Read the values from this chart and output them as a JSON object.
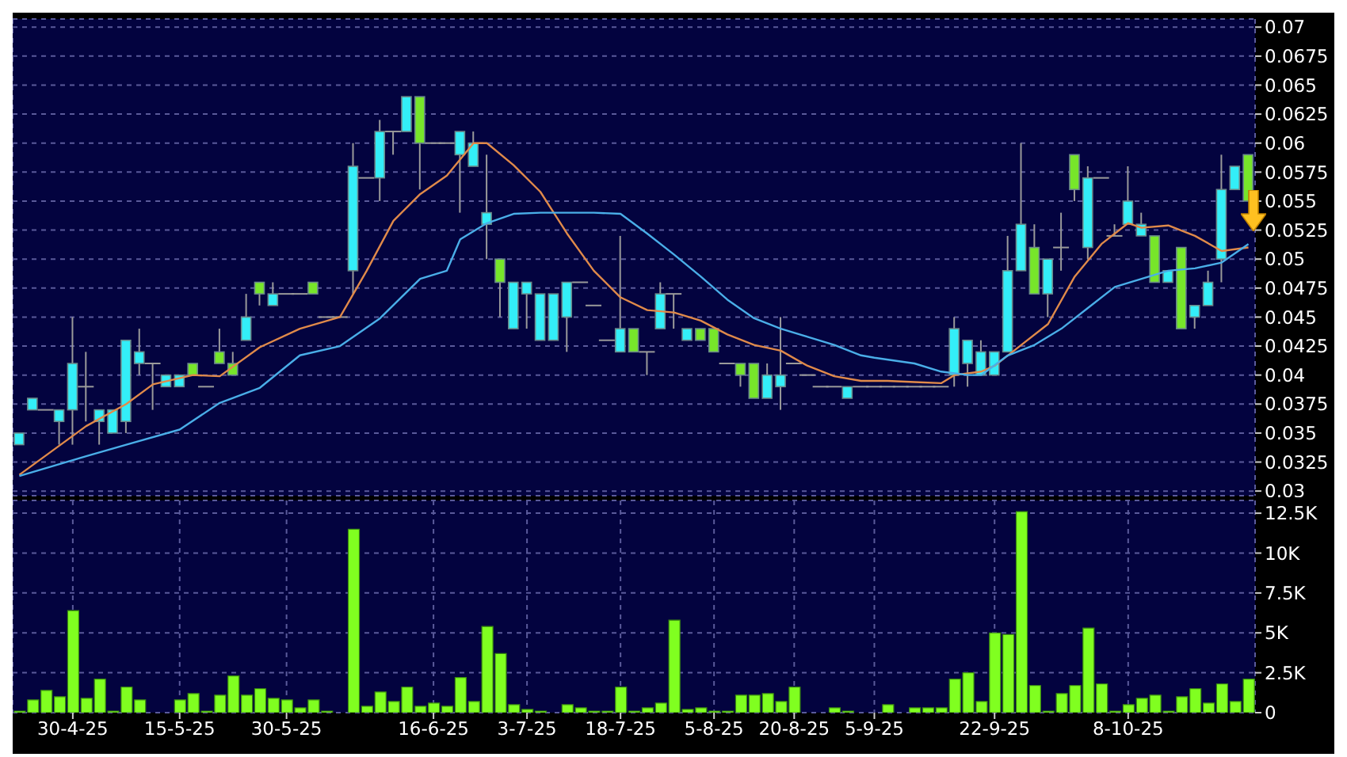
{
  "chart_data": [
    {
      "type": "candlestick",
      "categories": [
        null,
        null,
        null,
        null,
        null,
        null,
        null,
        null,
        null,
        null,
        null,
        null,
        null,
        null,
        null,
        null,
        null,
        null,
        null,
        null,
        null,
        null,
        null,
        null,
        null,
        null,
        null,
        null,
        null,
        null,
        null,
        null,
        null,
        null,
        null,
        null,
        null,
        null,
        null,
        null,
        null,
        null,
        null,
        null,
        null,
        null,
        null,
        null,
        null,
        null,
        null,
        null,
        null,
        null,
        null,
        null,
        null,
        null,
        null,
        null,
        null,
        null,
        null,
        null,
        null,
        null,
        null,
        null,
        null,
        null,
        null,
        null,
        null,
        null,
        null,
        null,
        null,
        null,
        null,
        null,
        null,
        null,
        null,
        null,
        null,
        null,
        null,
        null,
        null,
        null,
        null,
        null,
        null
      ],
      "ohlc": [
        [
          0.034,
          0.035,
          0.034,
          0.035
        ],
        [
          0.037,
          0.038,
          0.037,
          0.038
        ],
        [
          0.037,
          0.037,
          0.037,
          0.037
        ],
        [
          0.036,
          0.037,
          0.034,
          0.037
        ],
        [
          0.037,
          0.045,
          0.034,
          0.041
        ],
        [
          0.039,
          0.042,
          0.036,
          0.039
        ],
        [
          0.036,
          0.037,
          0.034,
          0.037
        ],
        [
          0.035,
          0.037,
          0.035,
          0.037
        ],
        [
          0.036,
          0.043,
          0.035,
          0.043
        ],
        [
          0.041,
          0.044,
          0.04,
          0.042
        ],
        [
          0.041,
          0.041,
          0.037,
          0.041
        ],
        [
          0.039,
          0.04,
          0.039,
          0.04
        ],
        [
          0.039,
          0.04,
          0.039,
          0.04
        ],
        [
          0.041,
          0.041,
          0.04,
          0.04
        ],
        [
          0.039,
          0.039,
          0.039,
          0.039
        ],
        [
          0.042,
          0.044,
          0.041,
          0.041
        ],
        [
          0.041,
          0.042,
          0.04,
          0.04
        ],
        [
          0.043,
          0.047,
          0.043,
          0.045
        ],
        [
          0.048,
          0.048,
          0.046,
          0.047
        ],
        [
          0.046,
          0.048,
          0.046,
          0.047
        ],
        [
          0.047,
          0.047,
          0.047,
          0.047
        ],
        [
          0.047,
          0.047,
          0.047,
          0.047
        ],
        [
          0.048,
          0.048,
          0.047,
          0.047
        ],
        [
          0.045,
          0.045,
          0.045,
          0.045
        ],
        [
          0.045,
          0.045,
          0.045,
          0.045
        ],
        [
          0.049,
          0.06,
          0.047,
          0.058
        ],
        [
          0.057,
          0.057,
          0.057,
          0.057
        ],
        [
          0.057,
          0.062,
          0.055,
          0.061
        ],
        [
          0.061,
          0.061,
          0.059,
          0.061
        ],
        [
          0.061,
          0.064,
          0.061,
          0.064
        ],
        [
          0.064,
          0.064,
          0.056,
          0.06
        ],
        [
          0.06,
          0.06,
          0.06,
          0.06
        ],
        [
          0.06,
          0.06,
          0.06,
          0.06
        ],
        [
          0.059,
          0.061,
          0.054,
          0.061
        ],
        [
          0.058,
          0.061,
          0.058,
          0.06
        ],
        [
          0.053,
          0.059,
          0.05,
          0.054
        ],
        [
          0.05,
          0.05,
          0.045,
          0.048
        ],
        [
          0.044,
          0.048,
          0.044,
          0.048
        ],
        [
          0.047,
          0.048,
          0.044,
          0.048
        ],
        [
          0.043,
          0.047,
          0.043,
          0.047
        ],
        [
          0.043,
          0.047,
          0.043,
          0.047
        ],
        [
          0.045,
          0.048,
          0.042,
          0.048
        ],
        [
          0.048,
          0.048,
          0.048,
          0.048
        ],
        [
          0.046,
          0.046,
          0.046,
          0.046
        ],
        [
          0.043,
          0.043,
          0.043,
          0.043
        ],
        [
          0.042,
          0.052,
          0.042,
          0.044
        ],
        [
          0.044,
          0.044,
          0.042,
          0.042
        ],
        [
          0.042,
          0.042,
          0.04,
          0.042
        ],
        [
          0.044,
          0.048,
          0.044,
          0.047
        ],
        [
          0.047,
          0.047,
          0.044,
          0.047
        ],
        [
          0.043,
          0.044,
          0.043,
          0.044
        ],
        [
          0.044,
          0.044,
          0.043,
          0.043
        ],
        [
          0.044,
          0.044,
          0.042,
          0.042
        ],
        [
          0.041,
          0.041,
          0.041,
          0.041
        ],
        [
          0.041,
          0.041,
          0.039,
          0.04
        ],
        [
          0.041,
          0.041,
          0.038,
          0.038
        ],
        [
          0.038,
          0.041,
          0.038,
          0.04
        ],
        [
          0.039,
          0.045,
          0.037,
          0.04
        ],
        [
          0.041,
          0.041,
          0.041,
          0.041
        ],
        [
          0.04,
          0.04,
          0.04,
          0.04
        ],
        [
          0.039,
          0.039,
          0.039,
          0.039
        ],
        [
          0.039,
          0.039,
          0.039,
          0.039
        ],
        [
          0.038,
          0.039,
          0.038,
          0.039
        ],
        [
          0.039,
          0.039,
          0.039,
          0.039
        ],
        [
          0.039,
          0.039,
          0.039,
          0.039
        ],
        [
          0.039,
          0.039,
          0.039,
          0.039
        ],
        [
          0.039,
          0.039,
          0.039,
          0.039
        ],
        [
          0.039,
          0.039,
          0.039,
          0.039
        ],
        [
          0.039,
          0.039,
          0.039,
          0.039
        ],
        [
          0.039,
          0.039,
          0.039,
          0.039
        ],
        [
          0.04,
          0.045,
          0.039,
          0.044
        ],
        [
          0.041,
          0.043,
          0.039,
          0.043
        ],
        [
          0.04,
          0.043,
          0.04,
          0.042
        ],
        [
          0.04,
          0.042,
          0.04,
          0.042
        ],
        [
          0.042,
          0.052,
          0.042,
          0.049
        ],
        [
          0.049,
          0.06,
          0.049,
          0.053
        ],
        [
          0.051,
          0.053,
          0.047,
          0.047
        ],
        [
          0.047,
          0.05,
          0.045,
          0.05
        ],
        [
          0.051,
          0.054,
          0.049,
          0.051
        ],
        [
          0.059,
          0.059,
          0.055,
          0.056
        ],
        [
          0.051,
          0.058,
          0.05,
          0.057
        ],
        [
          0.057,
          0.057,
          0.057,
          0.057
        ],
        [
          0.052,
          0.053,
          0.052,
          0.052
        ],
        [
          0.053,
          0.058,
          0.053,
          0.055
        ],
        [
          0.052,
          0.054,
          0.052,
          0.053
        ],
        [
          0.052,
          0.052,
          0.048,
          0.048
        ],
        [
          0.048,
          0.049,
          0.048,
          0.049
        ],
        [
          0.051,
          0.051,
          0.044,
          0.044
        ],
        [
          0.045,
          0.046,
          0.044,
          0.046
        ],
        [
          0.046,
          0.049,
          0.046,
          0.048
        ],
        [
          0.05,
          0.059,
          0.048,
          0.056
        ],
        [
          0.056,
          0.058,
          0.056,
          0.058
        ],
        [
          0.059,
          0.059,
          0.055,
          0.055
        ]
      ],
      "colors": [
        "#33eef8",
        "#33eef8",
        "#9a9a9a",
        "#33eef8",
        "#33eef8",
        "#9a9a9a",
        "#33eef8",
        "#33eef8",
        "#33eef8",
        "#33eef8",
        "#9a9a9a",
        "#33eef8",
        "#33eef8",
        "#77e62a",
        "#9a9a9a",
        "#77e62a",
        "#77e62a",
        "#33eef8",
        "#77e62a",
        "#33eef8",
        "#9a9a9a",
        "#9a9a9a",
        "#77e62a",
        "#9a9a9a",
        "#9a9a9a",
        "#33eef8",
        "#9a9a9a",
        "#33eef8",
        "#9a9a9a",
        "#33eef8",
        "#77e62a",
        "#9a9a9a",
        "#9a9a9a",
        "#33eef8",
        "#33eef8",
        "#33eef8",
        "#77e62a",
        "#33eef8",
        "#33eef8",
        "#33eef8",
        "#33eef8",
        "#33eef8",
        "#9a9a9a",
        "#9a9a9a",
        "#9a9a9a",
        "#33eef8",
        "#77e62a",
        "#9a9a9a",
        "#33eef8",
        "#9a9a9a",
        "#33eef8",
        "#77e62a",
        "#77e62a",
        "#9a9a9a",
        "#77e62a",
        "#77e62a",
        "#33eef8",
        "#33eef8",
        "#9a9a9a",
        "#9a9a9a",
        "#9a9a9a",
        "#9a9a9a",
        "#33eef8",
        "#9a9a9a",
        "#9a9a9a",
        "#9a9a9a",
        "#9a9a9a",
        "#9a9a9a",
        "#9a9a9a",
        "#9a9a9a",
        "#33eef8",
        "#33eef8",
        "#33eef8",
        "#33eef8",
        "#33eef8",
        "#33eef8",
        "#77e62a",
        "#33eef8",
        "#9a9a9a",
        "#77e62a",
        "#33eef8",
        "#9a9a9a",
        "#9a9a9a",
        "#33eef8",
        "#33eef8",
        "#77e62a",
        "#33eef8",
        "#77e62a",
        "#33eef8",
        "#33eef8",
        "#33eef8",
        "#33eef8",
        "#77e62a"
      ],
      "series": [
        {
          "type": "line",
          "color": "#e08a4a",
          "values": [
            0.0314,
            null,
            null,
            null,
            null,
            0.0356,
            null,
            null,
            0.0375,
            null,
            0.0392,
            null,
            null,
            0.04,
            null,
            0.0399,
            null,
            null,
            0.0424,
            null,
            null,
            0.044,
            null,
            null,
            0.045,
            null,
            0.049,
            null,
            0.0533,
            null,
            0.0556,
            null,
            0.0572,
            null,
            0.06,
            0.06,
            null,
            0.0581,
            null,
            0.0558,
            null,
            0.0522,
            null,
            0.049,
            null,
            0.0467,
            null,
            0.0456,
            null,
            0.0454,
            null,
            0.0447,
            null,
            0.0435,
            null,
            0.0426,
            null,
            0.0421,
            null,
            0.0408,
            null,
            0.0399,
            null,
            0.0395,
            null,
            0.0395,
            null,
            0.0394,
            null,
            0.0393,
            0.04,
            null,
            0.0403,
            0.0408,
            null,
            0.0426,
            null,
            0.0444,
            null,
            0.0485,
            null,
            0.0513,
            null,
            0.0531,
            0.0527,
            null,
            0.0529,
            null,
            0.052,
            null,
            0.0507,
            null,
            0.051
          ]
        },
        {
          "type": "line",
          "color": "#4aaee8",
          "values": [
            0.0313,
            null,
            null,
            null,
            null,
            0.033,
            null,
            null,
            0.034,
            null,
            null,
            null,
            0.0353,
            null,
            null,
            0.0376,
            null,
            null,
            0.0389,
            null,
            null,
            0.0417,
            null,
            null,
            0.0425,
            null,
            null,
            0.0449,
            null,
            null,
            0.0483,
            null,
            0.049,
            0.0517,
            null,
            0.0531,
            null,
            0.0539,
            null,
            0.054,
            null,
            0.054,
            null,
            0.054,
            null,
            0.0539,
            null,
            0.0522,
            null,
            0.0504,
            null,
            0.0485,
            null,
            0.0465,
            null,
            0.0449,
            null,
            0.044,
            null,
            0.0433,
            null,
            0.0426,
            null,
            0.0417,
            0.0415,
            null,
            null,
            0.041,
            null,
            0.0403,
            null,
            0.04,
            0.04,
            null,
            0.0417,
            null,
            0.0426,
            null,
            0.044,
            null,
            0.0458,
            null,
            0.0476,
            null,
            0.0483,
            null,
            0.049,
            null,
            0.0492,
            null,
            0.0497,
            null,
            0.0513
          ]
        }
      ],
      "ylim": [
        0.0296,
        0.0707
      ],
      "yticks": [
        0.03,
        0.0325,
        0.035,
        0.0375,
        0.04,
        0.0425,
        0.045,
        0.0475,
        0.05,
        0.0525,
        0.055,
        0.0575,
        0.06,
        0.0625,
        0.065,
        0.0675,
        0.07
      ],
      "grid": true,
      "tick_labels": "y"
    },
    {
      "type": "bar",
      "categories": [
        null,
        null,
        null,
        null,
        "30-4-25",
        null,
        null,
        null,
        null,
        null,
        null,
        null,
        "15-5-25",
        null,
        null,
        null,
        null,
        null,
        null,
        null,
        "30-5-25",
        null,
        null,
        null,
        null,
        null,
        null,
        null,
        null,
        null,
        null,
        "16-6-25",
        null,
        null,
        null,
        null,
        null,
        null,
        "3-7-25",
        null,
        null,
        null,
        null,
        null,
        null,
        "18-7-25",
        null,
        null,
        null,
        null,
        null,
        null,
        "5-8-25",
        null,
        null,
        null,
        null,
        null,
        "20-8-25",
        null,
        null,
        null,
        null,
        null,
        "5-9-25",
        null,
        null,
        null,
        null,
        null,
        null,
        null,
        null,
        "22-9-25",
        null,
        null,
        null,
        null,
        null,
        null,
        null,
        null,
        null,
        "8-10-25",
        null,
        null,
        null,
        null,
        null,
        null,
        null,
        null,
        null
      ],
      "values": [
        100,
        800,
        1400,
        1000,
        6400,
        900,
        2100,
        100,
        1600,
        800,
        0,
        0,
        800,
        1200,
        100,
        1100,
        2300,
        1100,
        1500,
        900,
        800,
        300,
        800,
        100,
        0,
        11500,
        400,
        1300,
        700,
        1600,
        400,
        600,
        400,
        2200,
        700,
        5400,
        3700,
        500,
        200,
        100,
        0,
        500,
        300,
        100,
        100,
        1600,
        100,
        300,
        600,
        5800,
        200,
        300,
        100,
        100,
        1100,
        1100,
        1200,
        700,
        1600,
        0,
        0,
        300,
        100,
        0,
        0,
        500,
        0,
        300,
        300,
        300,
        2100,
        2500,
        700,
        5000,
        4900,
        12600,
        1700,
        100,
        1200,
        1700,
        5300,
        1800,
        100,
        500,
        900,
        1100,
        100,
        1000,
        1500,
        600,
        1800,
        700,
        2100
      ],
      "color": "#80ff20",
      "ylim": [
        0,
        13300
      ],
      "yticks": [
        0,
        {
          "value": 2500,
          "label": "2.5K"
        },
        {
          "value": 5000,
          "label": "5K"
        },
        {
          "value": 7500,
          "label": "7.5K"
        },
        {
          "value": 10000,
          "label": "10K"
        },
        {
          "value": 12500,
          "label": "12.5K"
        }
      ],
      "grid": true
    }
  ]
}
